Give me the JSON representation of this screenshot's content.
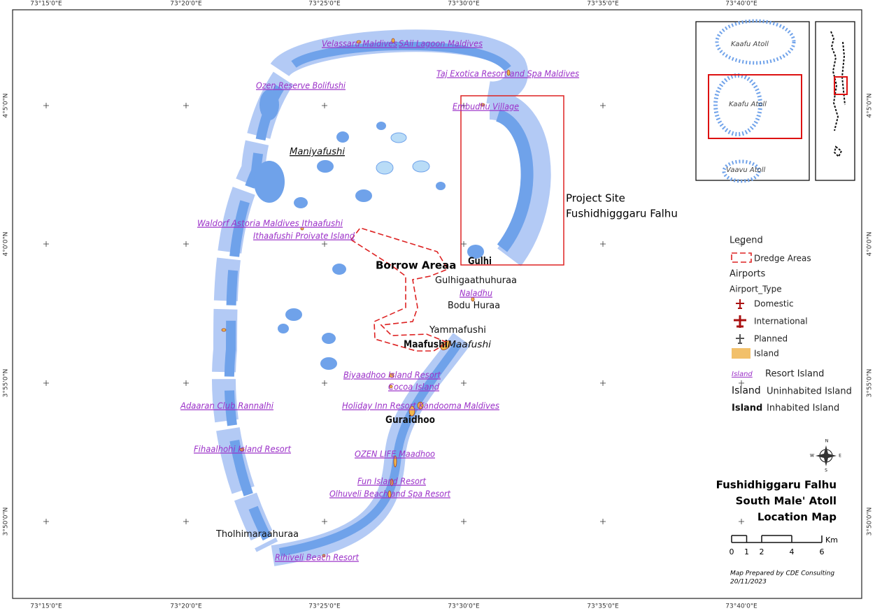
{
  "graticule": {
    "lon_top": [
      "73°15'0\"E",
      "73°20'0\"E",
      "73°25'0\"E",
      "73°30'0\"E",
      "73°35'0\"E",
      "73°40'0\"E"
    ],
    "lon_bottom": [
      "73°15'0\"E",
      "73°20'0\"E",
      "73°25'0\"E",
      "73°30'0\"E",
      "73°35'0\"E",
      "73°40'0\"E"
    ],
    "lat_left": [
      "4°5'0\"N",
      "4°0'0\"N",
      "3°55'0\"N",
      "3°50'0\"N"
    ],
    "lat_right": [
      "4°5'0\"N",
      "4°0'0\"N",
      "3°55'0\"N",
      "3°50'0\"N"
    ]
  },
  "map_labels": {
    "resorts": [
      "Velassaru Maldives",
      "SAii Lagoon Maldives",
      "Taj Exotica Resort and Spa Maldives",
      "Ozen Reserve Bolifushi",
      "Embudhu Village",
      "Waldorf Astoria Maldives Ithaafushi",
      "Ithaafushi Proivate Island",
      "Naladhu",
      "Biyaadhoo Island Resort",
      "Cocoa Island",
      "Adaaran Club Rannalhi",
      "Holiday Inn Resort Kandooma Maldives",
      "Fihaalhohi Island Resort",
      "OZEN LIFE Maadhoo",
      "Fun Island Resort",
      "Olhuveli Beach and Spa Resort",
      "Rihiveli Beach Resort"
    ],
    "uninhabited": [
      "Maniyafushi",
      "Gulhigaathuhuraa",
      "Bodu Huraa",
      "Yammafushi",
      "Maafushi",
      "Tholhimaraahuraa"
    ],
    "inhabited": [
      "Gulhi",
      "Maafushi",
      "Guraidhoo"
    ],
    "borrow_area": "Borrow Areaa",
    "project_site": [
      "Project Site",
      "Fushidhigggaru Falhu"
    ]
  },
  "inset": [
    "Kaafu Atoll",
    "Kaafu Atoll",
    "Vaavu Atoll"
  ],
  "legend": {
    "title": "Legend",
    "dredge": "Dredge Areas",
    "airports": "Airports",
    "airport_type": "Airport_Type",
    "domestic": "Domestic",
    "international": "International",
    "planned": "Planned",
    "island": "Island",
    "resort_sample": "Island",
    "resort": "Resort Island",
    "uninhabited_sample": "Island",
    "uninhabited": "Uninhabited Island",
    "inhabited_sample": "Island",
    "inhabited": "Inhabited Island"
  },
  "compass": [
    "N",
    "E",
    "S",
    "W"
  ],
  "title": [
    "Fushidhiggaru Falhu",
    "South Male' Atoll",
    "Location Map"
  ],
  "scale_bar": {
    "ticks": [
      0,
      1,
      2,
      4,
      6
    ],
    "unit": "Km"
  },
  "credit": [
    "Map Prepared by CDE Consulting",
    "20/11/2023"
  ]
}
